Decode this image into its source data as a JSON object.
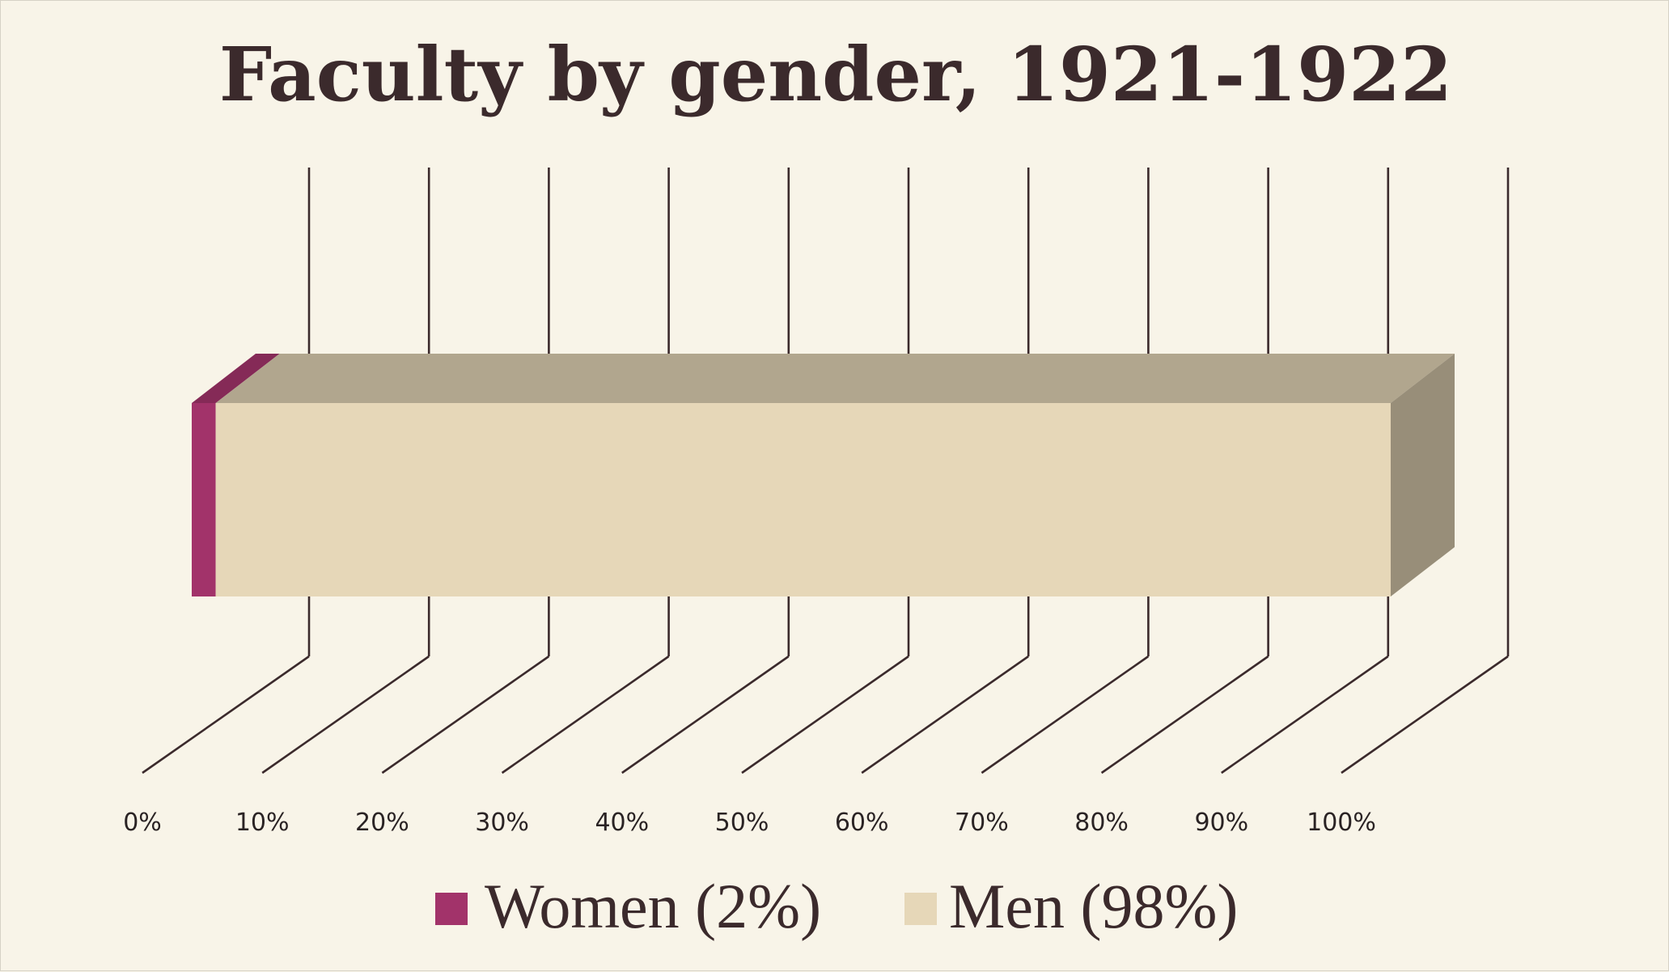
{
  "chart_data": {
    "type": "bar",
    "orientation": "horizontal",
    "stacking": "percent",
    "three_d": true,
    "title": "Faculty by gender, 1921-1922",
    "xlabel": "",
    "ylabel": "",
    "xlim": [
      0,
      100
    ],
    "x_ticks": [
      "0%",
      "10%",
      "20%",
      "30%",
      "40%",
      "50%",
      "60%",
      "70%",
      "80%",
      "90%",
      "100%"
    ],
    "grid": true,
    "legend_position": "bottom",
    "series": [
      {
        "name": "Women (2%)",
        "values": [
          2
        ],
        "color": "#a2336a"
      },
      {
        "name": "Men (98%)",
        "values": [
          98
        ],
        "color": "#e6d7b8"
      }
    ]
  }
}
